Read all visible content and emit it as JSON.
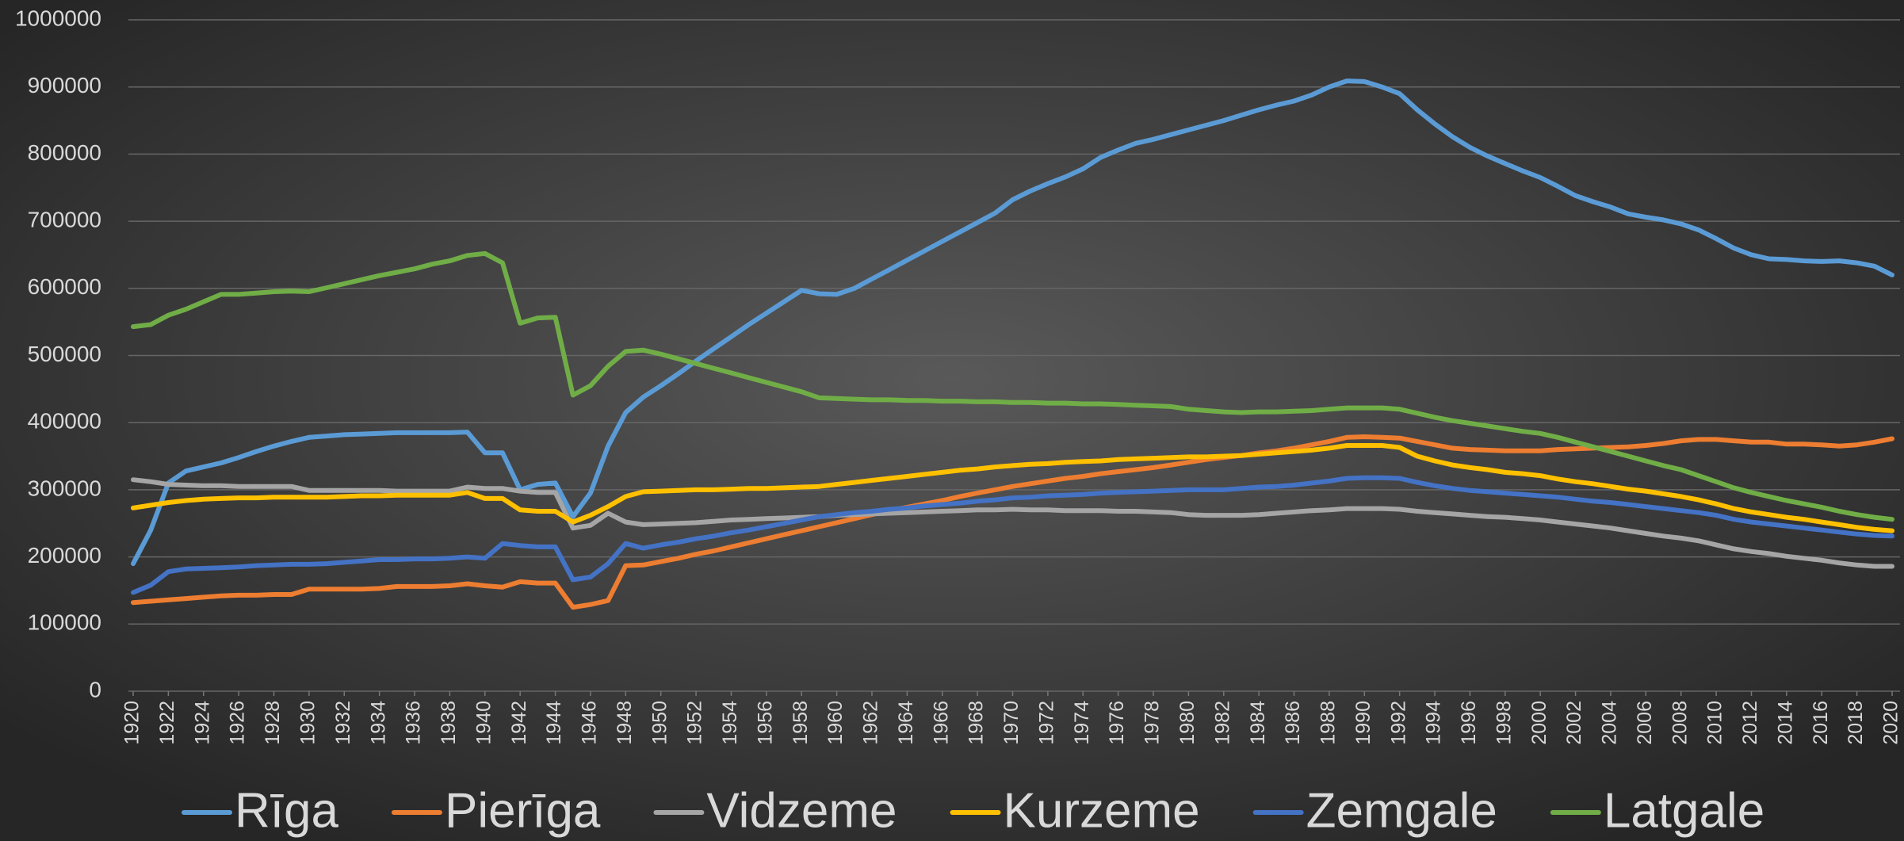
{
  "chart_data": {
    "type": "line",
    "x": [
      1920,
      1921,
      1922,
      1923,
      1924,
      1925,
      1926,
      1927,
      1928,
      1929,
      1930,
      1931,
      1932,
      1933,
      1934,
      1935,
      1936,
      1937,
      1938,
      1939,
      1940,
      1941,
      1942,
      1943,
      1944,
      1945,
      1946,
      1947,
      1948,
      1949,
      1950,
      1951,
      1952,
      1953,
      1954,
      1955,
      1956,
      1957,
      1958,
      1959,
      1960,
      1961,
      1962,
      1963,
      1964,
      1965,
      1966,
      1967,
      1968,
      1969,
      1970,
      1971,
      1972,
      1973,
      1974,
      1975,
      1976,
      1977,
      1978,
      1979,
      1980,
      1981,
      1982,
      1983,
      1984,
      1985,
      1986,
      1987,
      1988,
      1989,
      1990,
      1991,
      1992,
      1993,
      1994,
      1995,
      1996,
      1997,
      1998,
      1999,
      2000,
      2001,
      2002,
      2003,
      2004,
      2005,
      2006,
      2007,
      2008,
      2009,
      2010,
      2011,
      2012,
      2013,
      2014,
      2015,
      2016,
      2017,
      2018,
      2019,
      2020
    ],
    "xlim": [
      1920,
      2020
    ],
    "xticks": [
      1920,
      1922,
      1924,
      1926,
      1928,
      1930,
      1932,
      1934,
      1936,
      1938,
      1940,
      1942,
      1944,
      1946,
      1948,
      1950,
      1952,
      1954,
      1956,
      1958,
      1960,
      1962,
      1964,
      1966,
      1968,
      1970,
      1972,
      1974,
      1976,
      1978,
      1980,
      1982,
      1984,
      1986,
      1988,
      1990,
      1992,
      1994,
      1996,
      1998,
      2000,
      2002,
      2004,
      2006,
      2008,
      2010,
      2012,
      2014,
      2016,
      2018,
      2020
    ],
    "ylim": [
      0,
      1000000
    ],
    "yticks": [
      0,
      100000,
      200000,
      300000,
      400000,
      500000,
      600000,
      700000,
      800000,
      900000,
      1000000
    ],
    "grid": true,
    "legend": "bottom",
    "series": [
      {
        "name": "Rīga",
        "color": "#5b9bd5",
        "values": [
          190000,
          240000,
          310000,
          328000,
          334000,
          340000,
          348000,
          357000,
          365000,
          372000,
          378000,
          380000,
          382000,
          383000,
          384000,
          385000,
          385000,
          385000,
          385000,
          386000,
          355000,
          355000,
          300000,
          308000,
          310000,
          260000,
          295000,
          365000,
          415000,
          438000,
          455000,
          473000,
          492000,
          510000,
          528000,
          546000,
          563000,
          580000,
          597000,
          592000,
          591000,
          600000,
          614000,
          628000,
          642000,
          656000,
          670000,
          684000,
          698000,
          712000,
          732000,
          745000,
          756000,
          766000,
          778000,
          795000,
          806000,
          816000,
          822000,
          829000,
          836000,
          843000,
          850000,
          858000,
          866000,
          873000,
          879000,
          888000,
          900000,
          909000,
          908000,
          900000,
          890000,
          866000,
          845000,
          826000,
          810000,
          797000,
          786000,
          775000,
          765000,
          752000,
          738000,
          729000,
          721000,
          711000,
          706000,
          702000,
          696000,
          687000,
          674000,
          660000,
          650000,
          644000,
          643000,
          641000,
          640000,
          641000,
          638000,
          633000,
          620000
        ]
      },
      {
        "name": "Pierīga",
        "color": "#ed7d31",
        "values": [
          132000,
          134000,
          136000,
          138000,
          140000,
          142000,
          143000,
          143000,
          144000,
          144000,
          152000,
          152000,
          152000,
          152000,
          153000,
          156000,
          156000,
          156000,
          157000,
          160000,
          157000,
          155000,
          163000,
          161000,
          161000,
          125000,
          129000,
          135000,
          187000,
          188000,
          193000,
          198000,
          204000,
          209000,
          215000,
          221000,
          227000,
          233000,
          239000,
          245000,
          251000,
          257000,
          263000,
          269000,
          274000,
          279000,
          284000,
          290000,
          295000,
          300000,
          305000,
          309000,
          313000,
          317000,
          320000,
          324000,
          327000,
          330000,
          333000,
          337000,
          341000,
          345000,
          348000,
          351000,
          355000,
          358000,
          362000,
          367000,
          372000,
          378000,
          379000,
          378000,
          377000,
          372000,
          367000,
          362000,
          360000,
          359000,
          358000,
          358000,
          358000,
          360000,
          361000,
          362000,
          363000,
          364000,
          366000,
          369000,
          373000,
          375000,
          375000,
          373000,
          371000,
          371000,
          368000,
          368000,
          367000,
          365000,
          367000,
          371000,
          376000
        ]
      },
      {
        "name": "Vidzeme",
        "color": "#a5a5a5",
        "values": [
          315000,
          312000,
          308000,
          307000,
          306000,
          306000,
          305000,
          305000,
          305000,
          305000,
          299000,
          299000,
          299000,
          299000,
          299000,
          298000,
          298000,
          298000,
          298000,
          304000,
          302000,
          302000,
          298000,
          296000,
          296000,
          243000,
          247000,
          265000,
          252000,
          248000,
          249000,
          250000,
          251000,
          253000,
          255000,
          256000,
          257000,
          258000,
          259000,
          260000,
          262000,
          263000,
          264000,
          265000,
          266000,
          267000,
          268000,
          269000,
          270000,
          270000,
          271000,
          270000,
          270000,
          269000,
          269000,
          269000,
          268000,
          268000,
          267000,
          266000,
          263000,
          262000,
          262000,
          262000,
          263000,
          265000,
          267000,
          269000,
          270000,
          272000,
          272000,
          272000,
          271000,
          268000,
          266000,
          264000,
          262000,
          260000,
          259000,
          257000,
          255000,
          252000,
          249000,
          246000,
          243000,
          239000,
          235000,
          231000,
          228000,
          224000,
          218000,
          212000,
          208000,
          205000,
          201000,
          198000,
          195000,
          191000,
          188000,
          186000,
          186000
        ]
      },
      {
        "name": "Kurzeme",
        "color": "#ffc000",
        "values": [
          273000,
          277000,
          281000,
          284000,
          286000,
          287000,
          288000,
          288000,
          289000,
          289000,
          289000,
          289000,
          290000,
          291000,
          291000,
          292000,
          292000,
          292000,
          292000,
          296000,
          287000,
          287000,
          270000,
          268000,
          268000,
          252000,
          262000,
          275000,
          290000,
          297000,
          298000,
          299000,
          300000,
          300000,
          301000,
          302000,
          302000,
          303000,
          304000,
          305000,
          308000,
          311000,
          314000,
          317000,
          320000,
          323000,
          326000,
          329000,
          331000,
          334000,
          336000,
          338000,
          339000,
          341000,
          342000,
          343000,
          345000,
          346000,
          347000,
          348000,
          349000,
          349000,
          350000,
          351000,
          353000,
          355000,
          357000,
          359000,
          362000,
          366000,
          366000,
          366000,
          363000,
          350000,
          343000,
          337000,
          333000,
          330000,
          326000,
          324000,
          321000,
          316000,
          312000,
          309000,
          305000,
          301000,
          298000,
          294000,
          290000,
          285000,
          279000,
          272000,
          267000,
          263000,
          259000,
          256000,
          252000,
          248000,
          244000,
          241000,
          239000
        ]
      },
      {
        "name": "Zemgale",
        "color": "#4472c4",
        "values": [
          147000,
          158000,
          178000,
          182000,
          183000,
          184000,
          185000,
          187000,
          188000,
          189000,
          189000,
          190000,
          192000,
          194000,
          196000,
          196000,
          197000,
          197000,
          198000,
          200000,
          198000,
          220000,
          217000,
          215000,
          215000,
          166000,
          170000,
          190000,
          220000,
          213000,
          218000,
          222000,
          227000,
          231000,
          236000,
          240000,
          245000,
          250000,
          255000,
          260000,
          263000,
          266000,
          268000,
          271000,
          273000,
          276000,
          278000,
          280000,
          283000,
          285000,
          288000,
          289000,
          291000,
          292000,
          293000,
          295000,
          296000,
          297000,
          298000,
          299000,
          300000,
          300000,
          300000,
          302000,
          304000,
          305000,
          307000,
          310000,
          313000,
          317000,
          318000,
          318000,
          317000,
          311000,
          306000,
          302000,
          299000,
          297000,
          295000,
          293000,
          291000,
          289000,
          286000,
          283000,
          281000,
          278000,
          275000,
          272000,
          269000,
          266000,
          262000,
          256000,
          252000,
          249000,
          246000,
          243000,
          240000,
          237000,
          234000,
          232000,
          231000
        ]
      },
      {
        "name": "Latgale",
        "color": "#70ad47",
        "values": [
          543000,
          546000,
          560000,
          569000,
          580000,
          591000,
          591000,
          593000,
          595000,
          596000,
          595000,
          601000,
          607000,
          613000,
          619000,
          624000,
          629000,
          636000,
          641000,
          649000,
          652000,
          638000,
          548000,
          556000,
          557000,
          441000,
          455000,
          484000,
          506000,
          508000,
          502000,
          495000,
          488000,
          481000,
          474000,
          467000,
          460000,
          453000,
          446000,
          437000,
          436000,
          435000,
          434000,
          434000,
          433000,
          433000,
          432000,
          432000,
          431000,
          431000,
          430000,
          430000,
          429000,
          429000,
          428000,
          428000,
          427000,
          426000,
          425000,
          424000,
          420000,
          418000,
          416000,
          415000,
          416000,
          416000,
          417000,
          418000,
          420000,
          422000,
          422000,
          422000,
          420000,
          414000,
          408000,
          403000,
          399000,
          395000,
          391000,
          387000,
          384000,
          378000,
          371000,
          364000,
          357000,
          350000,
          343000,
          336000,
          330000,
          321000,
          312000,
          303000,
          296000,
          290000,
          284000,
          279000,
          274000,
          268000,
          263000,
          259000,
          256000
        ]
      }
    ]
  }
}
